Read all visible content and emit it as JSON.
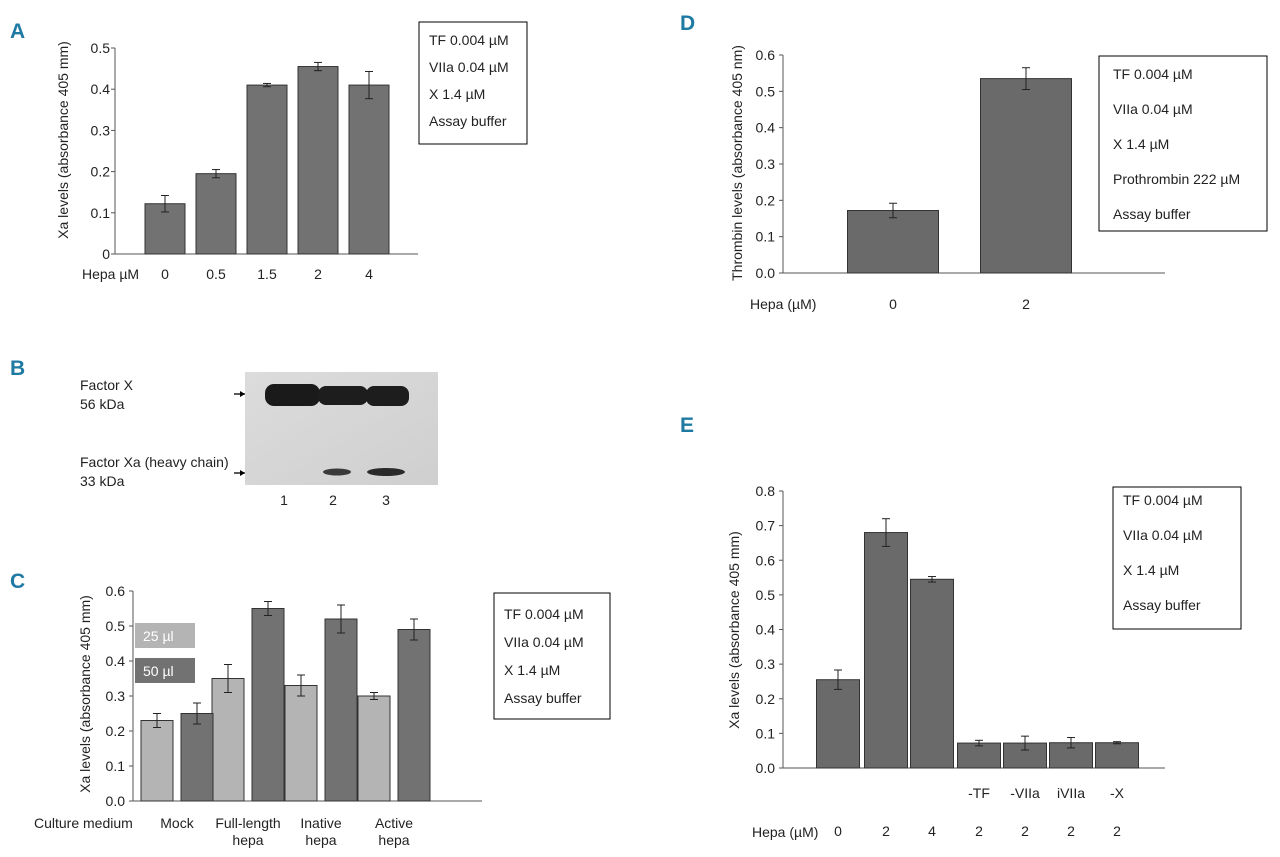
{
  "colors": {
    "bar_dark": "#727272",
    "bar_darker": "#6a6a6a",
    "bar_light": "#b4b4b4",
    "panel_label": "#1f7aa3",
    "axis": "#555555"
  },
  "panel_labels": {
    "a": "A",
    "b": "B",
    "c": "C",
    "d": "D",
    "e": "E"
  },
  "chart_data": [
    {
      "id": "A",
      "type": "bar",
      "ylabel": "Xa levels (absorbance 405 mm)",
      "xlabel_prefix": "Hepa µM",
      "ylim": [
        0,
        0.5
      ],
      "yticks": [
        "0",
        "0.1",
        "0.2",
        "0.3",
        "0.4",
        "0.5"
      ],
      "categories": [
        "0",
        "0.5",
        "1.5",
        "2",
        "4"
      ],
      "values": [
        0.122,
        0.195,
        0.41,
        0.455,
        0.41
      ],
      "errors": [
        0.02,
        0.01,
        0.004,
        0.01,
        0.033
      ],
      "legend": [
        "TF 0.004 µM",
        "VIIa 0.04 µM",
        "X 1.4 µM",
        "Assay buffer"
      ]
    },
    {
      "id": "B",
      "type": "blot",
      "labels": [
        "Factor X",
        "56 kDa",
        "Factor Xa (heavy chain)",
        "33 kDa"
      ],
      "lanes": [
        "1",
        "2",
        "3"
      ]
    },
    {
      "id": "C",
      "type": "bar",
      "ylabel": "Xa levels (absorbance 405 mm)",
      "xlabel_prefix": "Culture medium",
      "ylim": [
        0,
        0.6
      ],
      "yticks": [
        "0.0",
        "0.1",
        "0.2",
        "0.3",
        "0.4",
        "0.5",
        "0.6"
      ],
      "categories": [
        [
          "Mock"
        ],
        [
          "Full-length",
          "hepa"
        ],
        [
          "Inative",
          "hepa"
        ],
        [
          "Active",
          "hepa"
        ]
      ],
      "series": [
        {
          "name": "25 µl",
          "values": [
            0.23,
            0.35,
            0.33,
            0.3
          ],
          "errors": [
            0.02,
            0.04,
            0.03,
            0.01
          ]
        },
        {
          "name": "50 µl",
          "values": [
            0.25,
            0.55,
            0.52,
            0.49
          ],
          "errors": [
            0.03,
            0.02,
            0.04,
            0.03
          ]
        }
      ],
      "legend": [
        "TF 0.004 µM",
        "VIIa 0.04 µM",
        "X 1.4 µM",
        "Assay buffer"
      ]
    },
    {
      "id": "D",
      "type": "bar",
      "ylabel": "Thrombin levels (absorbance 405 nm)",
      "xlabel_prefix": "Hepa (µM)",
      "ylim": [
        0,
        0.6
      ],
      "yticks": [
        "0.0",
        "0.1",
        "0.2",
        "0.3",
        "0.4",
        "0.5",
        "0.6"
      ],
      "categories": [
        "0",
        "2"
      ],
      "values": [
        0.172,
        0.535
      ],
      "errors": [
        0.02,
        0.03
      ],
      "legend": [
        "TF 0.004 µM",
        "VIIa 0.04 µM",
        "X 1.4 µM",
        "Prothrombin 222 µM",
        "Assay buffer"
      ]
    },
    {
      "id": "E",
      "type": "bar",
      "ylabel": "Xa levels (absorbance 405 mm)",
      "xlabel_prefix": "Hepa (µM)",
      "ylim": [
        0,
        0.8
      ],
      "yticks": [
        "0.0",
        "0.1",
        "0.2",
        "0.3",
        "0.4",
        "0.5",
        "0.6",
        "0.7",
        "0.8"
      ],
      "categories": [
        "0",
        "2",
        "4",
        "2",
        "2",
        "2",
        "2"
      ],
      "conditions": [
        "",
        "",
        "",
        "-TF",
        "-VIIa",
        "iVIIa",
        "-X"
      ],
      "values": [
        0.255,
        0.68,
        0.545,
        0.072,
        0.072,
        0.073,
        0.073
      ],
      "errors": [
        0.028,
        0.04,
        0.008,
        0.008,
        0.02,
        0.015,
        0.003
      ],
      "legend": [
        "TF 0.004 µM",
        "VIIa 0.04 µM",
        "X 1.4 µM",
        "Assay buffer"
      ]
    }
  ]
}
